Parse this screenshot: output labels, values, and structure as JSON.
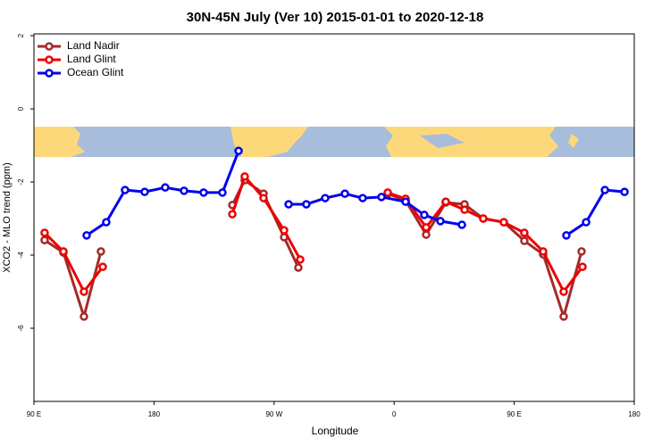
{
  "chart_data": {
    "type": "line",
    "title": "30N-45N July (Ver 10)   2015-01-01 to 2020-12-18",
    "x_label": "Longitude",
    "y_label": "XCO2 - MLO trend (ppm)",
    "xlim": [
      90,
      540
    ],
    "ylim": [
      -8,
      2.05
    ],
    "xticks": [
      {
        "value": 90,
        "label": "90 E"
      },
      {
        "value": 180,
        "label": "180"
      },
      {
        "value": 270,
        "label": "90 W"
      },
      {
        "value": 360,
        "label": "0"
      },
      {
        "value": 450,
        "label": "90 E"
      },
      {
        "value": 540,
        "label": "180"
      }
    ],
    "yticks": [
      2,
      0,
      -2,
      -4,
      -6
    ],
    "legend": "top-left",
    "series": [
      {
        "name": "Land Nadir",
        "color": "#a52a2a",
        "x": [
          98.0,
          112.1,
          127.5,
          140.2,
          null,
          238.7,
          248.0,
          262.1,
          277.5,
          288.2,
          null,
          355.2,
          368.6,
          384.0,
          398.7,
          412.8,
          426.8,
          442.2,
          457.6,
          471.7,
          487.1,
          500.5
        ],
        "values": [
          -3.59,
          -3.93,
          -5.68,
          -3.9,
          null,
          -2.63,
          -1.95,
          -2.32,
          -3.51,
          -4.34,
          null,
          -2.32,
          -2.51,
          -3.44,
          -2.56,
          -2.61,
          -3.0,
          -3.1,
          -3.61,
          -3.98,
          -5.68,
          -3.9
        ]
      },
      {
        "name": "Land Glint",
        "color": "#ee0000",
        "x": [
          98.0,
          112.1,
          127.5,
          141.6,
          null,
          238.7,
          248.0,
          262.1,
          277.5,
          289.6,
          null,
          355.2,
          368.6,
          384.0,
          398.7,
          412.8,
          426.8,
          442.2,
          457.6,
          471.7,
          487.1,
          501.2
        ],
        "values": [
          -3.39,
          -3.9,
          -5.0,
          -4.32,
          null,
          -2.88,
          -1.85,
          -2.44,
          -3.32,
          -4.12,
          null,
          -2.29,
          -2.46,
          -3.24,
          -2.54,
          -2.76,
          -3.0,
          -3.1,
          -3.39,
          -3.9,
          -5.0,
          -4.32
        ]
      },
      {
        "name": "Ocean Glint",
        "color": "#0000ee",
        "x": [
          129.5,
          144.2,
          158.3,
          173.0,
          188.4,
          202.5,
          217.2,
          231.3,
          243.4,
          null,
          280.9,
          294.2,
          308.3,
          323.1,
          336.4,
          350.5,
          368.6,
          382.6,
          394.7,
          410.8,
          null,
          489.1,
          503.9,
          518.0,
          532.7
        ],
        "values": [
          -3.46,
          -3.1,
          -2.22,
          -2.27,
          -2.15,
          -2.24,
          -2.29,
          -2.29,
          -1.15,
          null,
          -2.61,
          -2.61,
          -2.44,
          -2.32,
          -2.44,
          -2.41,
          -2.54,
          -2.9,
          -3.07,
          -3.17,
          null,
          -3.46,
          -3.1,
          -2.22,
          -2.27
        ]
      }
    ]
  }
}
